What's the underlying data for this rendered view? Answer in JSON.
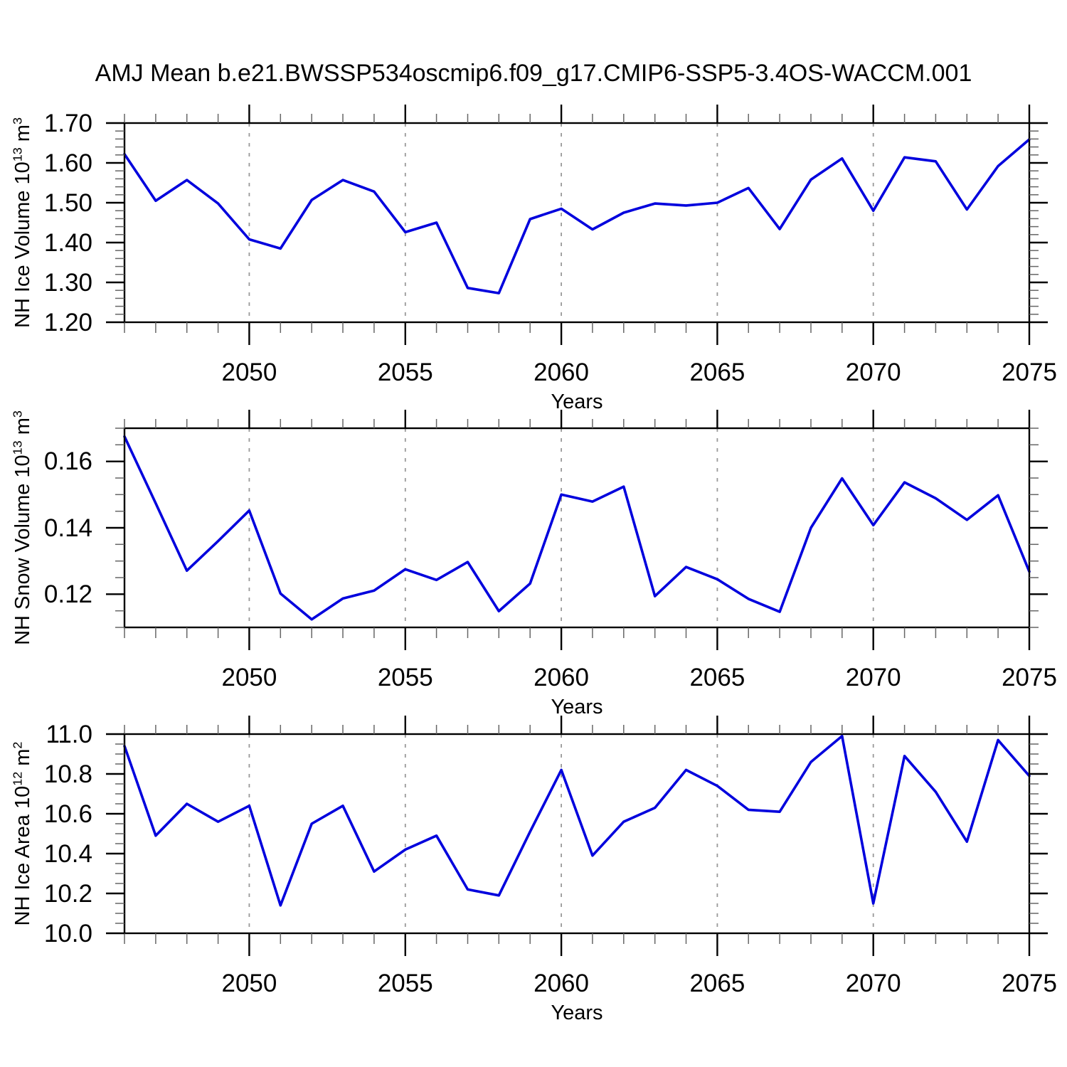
{
  "title": "AMJ Mean b.e21.BWSSP534oscmip6.f09_g17.CMIP6-SSP5-3.4OS-WACCM.001",
  "xaxis": {
    "label": "Years",
    "xlim": [
      2046,
      2075
    ],
    "minor_step": 1,
    "major_ticks": [
      2050,
      2055,
      2060,
      2065,
      2070,
      2075
    ],
    "tick_labels": [
      "2050",
      "2055",
      "2060",
      "2065",
      "2070",
      "2075"
    ],
    "gridlines": [
      2050,
      2055,
      2060,
      2065,
      2070
    ]
  },
  "style": {
    "line_color": "#0000dd",
    "grid_color": "#999999",
    "axis_color": "#000000",
    "background": "#ffffff"
  },
  "chart_data": [
    {
      "type": "line",
      "name": "nh-ice-volume",
      "ylabel": "NH Ice Volume 10^13 m^3",
      "ylabel_parts": {
        "base": "NH Ice Volume 10",
        "exp": "13",
        "unit": " m",
        "unit_exp": "3"
      },
      "xlabel": "Years",
      "ylim": [
        1.2,
        1.7
      ],
      "ytick_values": [
        1.2,
        1.3,
        1.4,
        1.5,
        1.6,
        1.7
      ],
      "ytick_labels": [
        "1.20",
        "1.30",
        "1.40",
        "1.50",
        "1.60",
        "1.70"
      ],
      "yminor_step": 0.02,
      "legend": "none",
      "grid": "vertical-dashed",
      "x": [
        2046,
        2047,
        2048,
        2049,
        2050,
        2051,
        2052,
        2053,
        2054,
        2055,
        2056,
        2057,
        2058,
        2059,
        2060,
        2061,
        2062,
        2063,
        2064,
        2065,
        2066,
        2067,
        2068,
        2069,
        2070,
        2071,
        2072,
        2073,
        2074,
        2075
      ],
      "values": [
        1.622,
        1.505,
        1.557,
        1.498,
        1.408,
        1.385,
        1.507,
        1.557,
        1.528,
        1.426,
        1.45,
        1.286,
        1.273,
        1.459,
        1.485,
        1.433,
        1.475,
        1.498,
        1.493,
        1.5,
        1.537,
        1.434,
        1.558,
        1.611,
        1.48,
        1.614,
        1.604,
        1.483,
        1.592,
        1.659
      ]
    },
    {
      "type": "line",
      "name": "nh-snow-volume",
      "ylabel": "NH Snow Volume 10^13 m^3",
      "ylabel_parts": {
        "base": "NH Snow Volume 10",
        "exp": "13",
        "unit": " m",
        "unit_exp": "3"
      },
      "xlabel": "Years",
      "ylim": [
        0.11,
        0.17
      ],
      "ytick_values": [
        0.12,
        0.14,
        0.16
      ],
      "ytick_labels": [
        "0.12",
        "0.14",
        "0.16"
      ],
      "yminor_step": 0.005,
      "legend": "none",
      "grid": "vertical-dashed",
      "x": [
        2046,
        2047,
        2048,
        2049,
        2050,
        2051,
        2052,
        2053,
        2054,
        2055,
        2056,
        2057,
        2058,
        2059,
        2060,
        2061,
        2062,
        2063,
        2064,
        2065,
        2066,
        2067,
        2068,
        2069,
        2070,
        2071,
        2072,
        2073,
        2074,
        2075
      ],
      "values": [
        0.1675,
        0.1474,
        0.1271,
        0.136,
        0.1452,
        0.1202,
        0.1124,
        0.1187,
        0.1211,
        0.1275,
        0.1243,
        0.1297,
        0.1149,
        0.1232,
        0.15,
        0.1479,
        0.1524,
        0.1194,
        0.1282,
        0.1245,
        0.1186,
        0.1147,
        0.14,
        0.1549,
        0.1408,
        0.1537,
        0.1489,
        0.1424,
        0.1498,
        0.1268
      ]
    },
    {
      "type": "line",
      "name": "nh-ice-area",
      "ylabel": "NH Ice Area 10^12 m^2",
      "ylabel_parts": {
        "base": "NH Ice Area 10",
        "exp": "12",
        "unit": " m",
        "unit_exp": "2"
      },
      "xlabel": "Years",
      "ylim": [
        10.0,
        11.0
      ],
      "ytick_values": [
        10.0,
        10.2,
        10.4,
        10.6,
        10.8,
        11.0
      ],
      "ytick_labels": [
        "10.0",
        "10.2",
        "10.4",
        "10.6",
        "10.8",
        "11.0"
      ],
      "yminor_step": 0.05,
      "legend": "none",
      "grid": "vertical-dashed",
      "x": [
        2046,
        2047,
        2048,
        2049,
        2050,
        2051,
        2052,
        2053,
        2054,
        2055,
        2056,
        2057,
        2058,
        2059,
        2060,
        2061,
        2062,
        2063,
        2064,
        2065,
        2066,
        2067,
        2068,
        2069,
        2070,
        2071,
        2072,
        2073,
        2074,
        2075
      ],
      "values": [
        10.94,
        10.49,
        10.65,
        10.56,
        10.64,
        10.14,
        10.55,
        10.64,
        10.31,
        10.42,
        10.49,
        10.22,
        10.19,
        10.51,
        10.82,
        10.39,
        10.56,
        10.63,
        10.82,
        10.74,
        10.62,
        10.61,
        10.86,
        10.99,
        10.15,
        10.89,
        10.71,
        10.46,
        10.97,
        10.79
      ]
    }
  ]
}
